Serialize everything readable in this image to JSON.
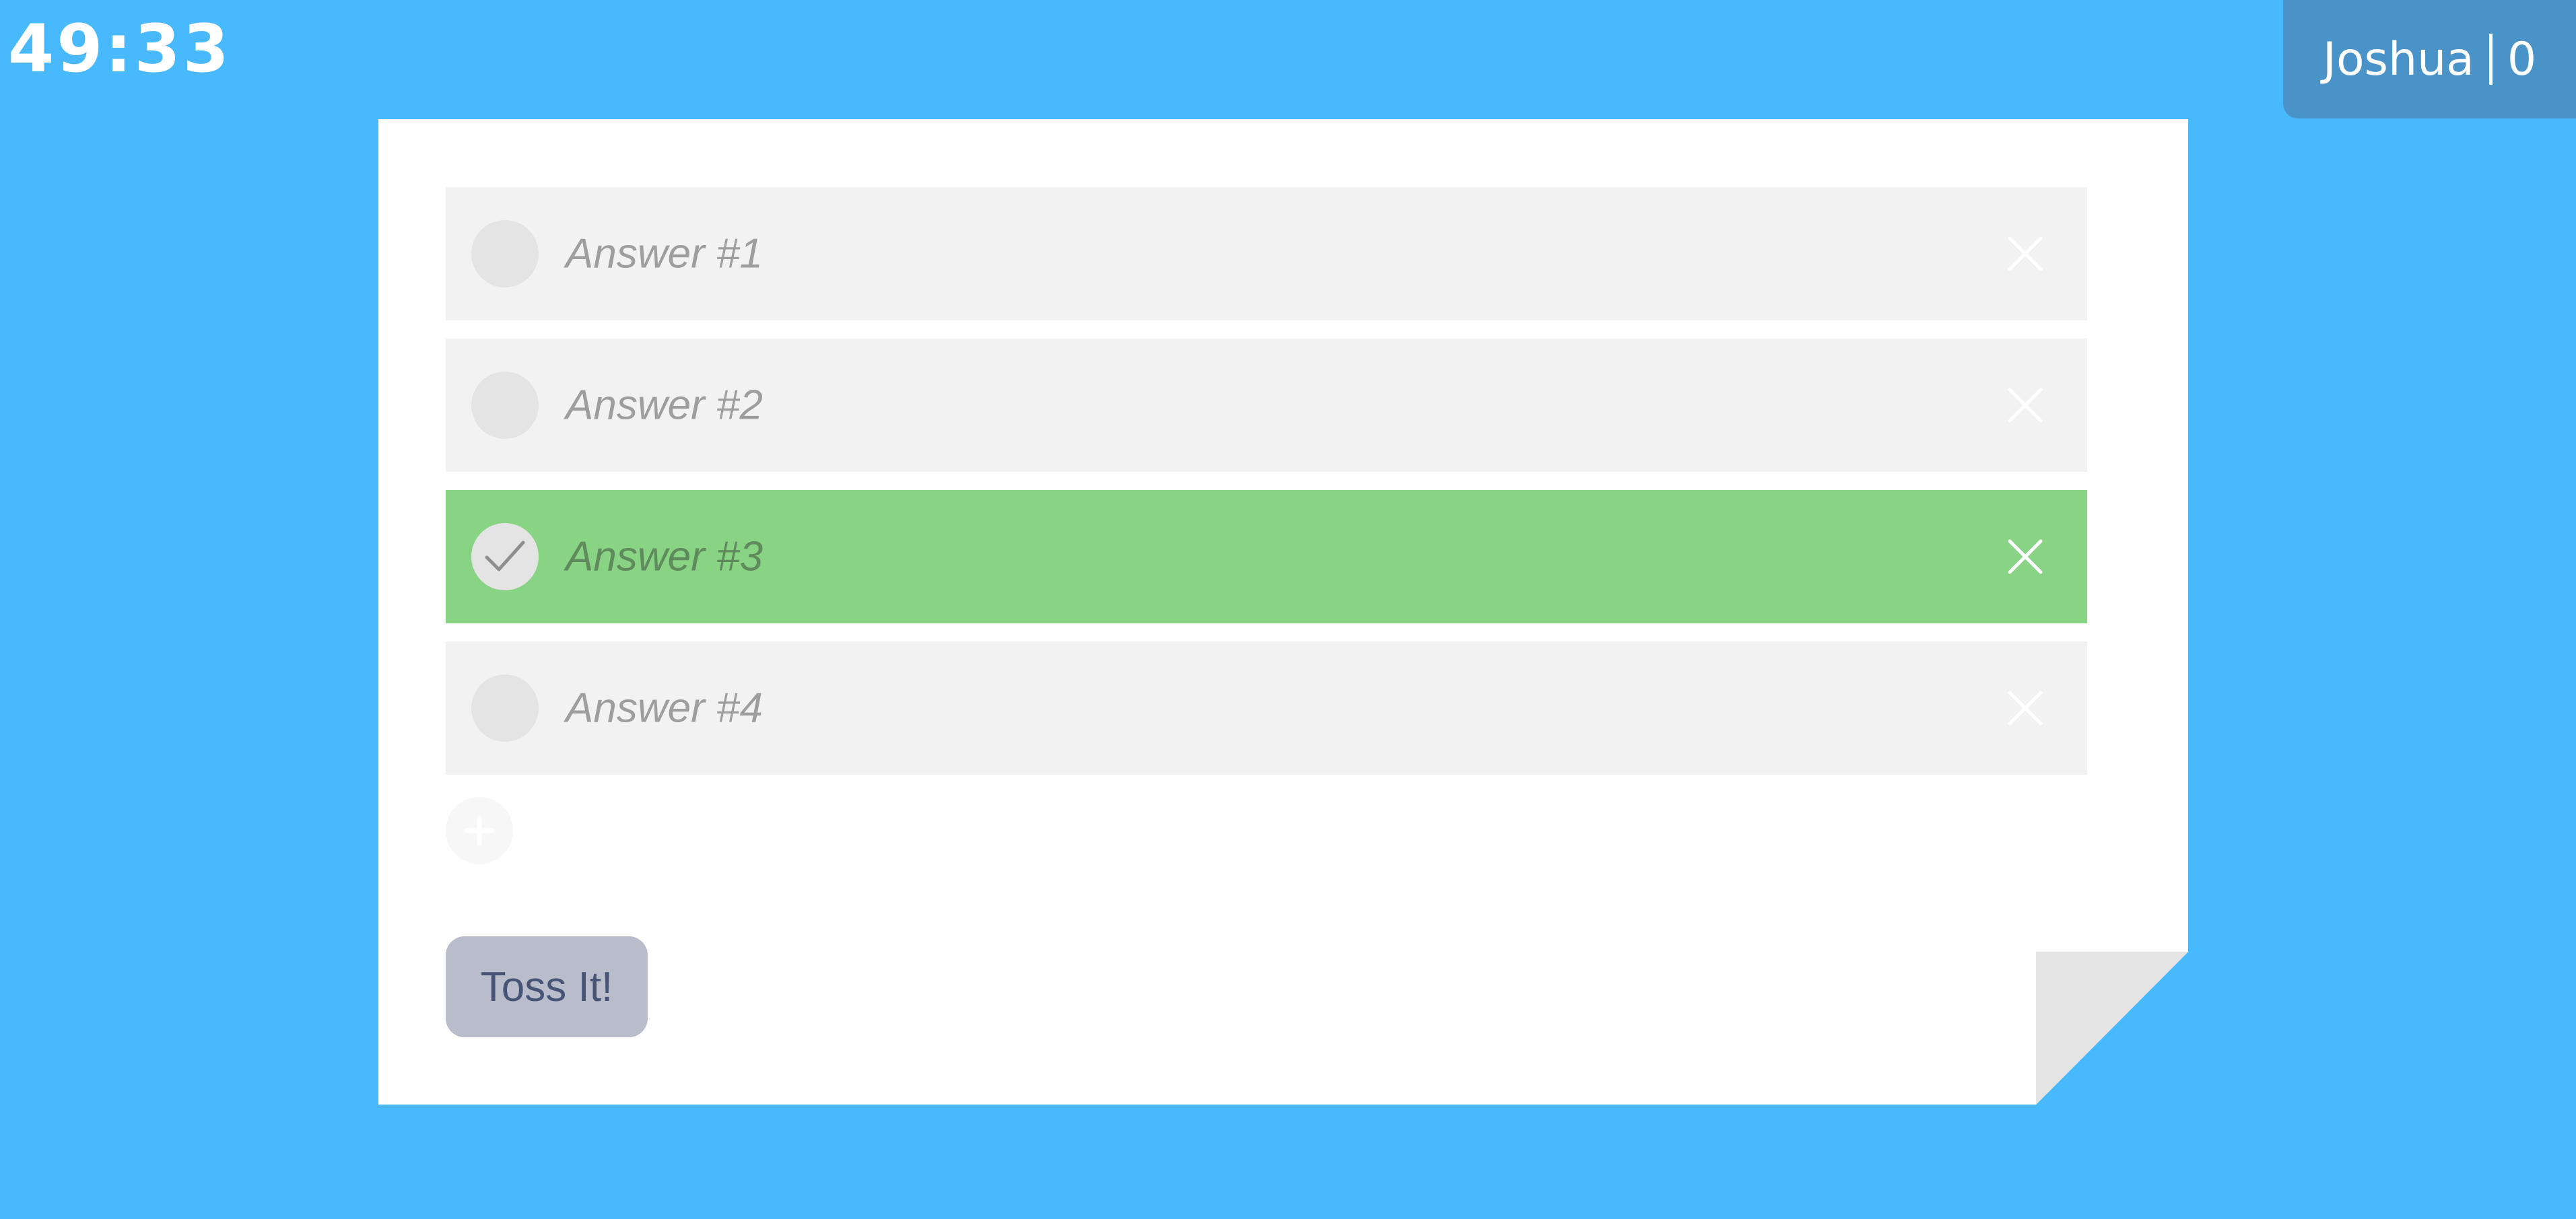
{
  "timer": {
    "text": "49:33"
  },
  "player": {
    "name": "Joshua",
    "score": "0"
  },
  "answers": [
    {
      "label": "Answer #1",
      "correct": false
    },
    {
      "label": "Answer #2",
      "correct": false
    },
    {
      "label": "Answer #3",
      "correct": true
    },
    {
      "label": "Answer #4",
      "correct": false
    }
  ],
  "actions": {
    "submit_label": "Toss It!"
  },
  "icons": {
    "check": "check-icon",
    "remove": "close-icon",
    "add": "plus-icon"
  },
  "colors": {
    "background": "#49b9fe",
    "badge": "#4a93c8",
    "correct_row": "#88d384",
    "row": "#f2f2f2",
    "button": "#b8bccb",
    "button_text": "#475476"
  }
}
